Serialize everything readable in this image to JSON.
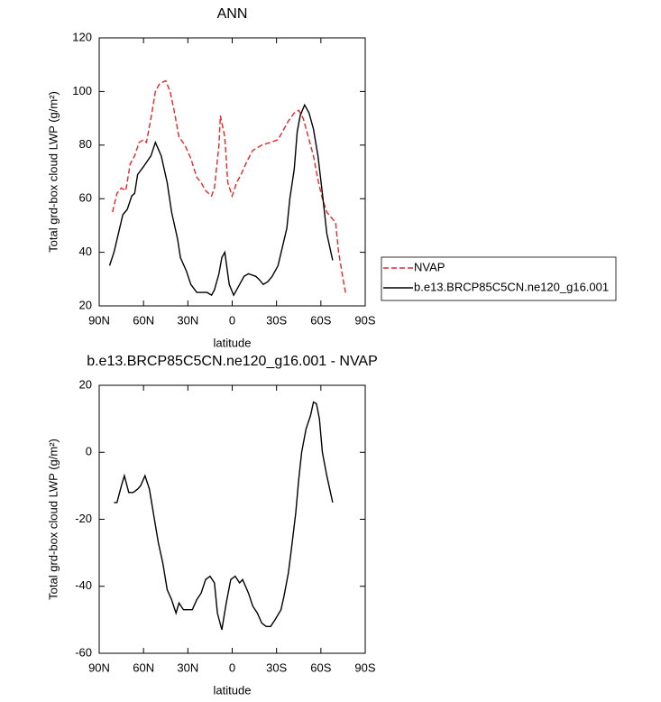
{
  "chart_data": [
    {
      "type": "line",
      "title": "ANN",
      "xlabel": "latitude",
      "ylabel": "Total grd-box cloud LWP (g/m²)",
      "xlim": [
        90,
        -90
      ],
      "xticks": [
        {
          "value": 90,
          "label": "90N"
        },
        {
          "value": 60,
          "label": "60N"
        },
        {
          "value": 30,
          "label": "30N"
        },
        0,
        {
          "value": -30,
          "label": "30S"
        },
        {
          "value": -60,
          "label": "60S"
        },
        {
          "value": -90,
          "label": "90S"
        }
      ],
      "ylim": [
        20,
        120
      ],
      "yticks": [
        20,
        40,
        60,
        80,
        100,
        120
      ],
      "legend": "right",
      "series": [
        {
          "name": "NVAP",
          "color": "#e8262a",
          "dash": "dashed",
          "x": [
            81,
            78,
            75,
            72,
            69,
            66,
            63,
            60,
            58,
            55,
            52,
            49,
            45,
            42,
            39,
            36,
            32,
            28,
            24,
            21,
            18,
            14,
            12,
            9,
            8,
            5,
            3,
            0,
            -3,
            -6,
            -10,
            -14,
            -20,
            -26,
            -31,
            -35,
            -38,
            -42,
            -45,
            -48,
            -51,
            -55,
            -58,
            -61,
            -64,
            -67,
            -70,
            -72,
            -75,
            -77
          ],
          "values": [
            55,
            62,
            64,
            63,
            73,
            76,
            81,
            82,
            81,
            90,
            100,
            103,
            104,
            100,
            92,
            83,
            80,
            75,
            68,
            66,
            63,
            61,
            64,
            80,
            91,
            83,
            66,
            61,
            66,
            69,
            74,
            78,
            80,
            81,
            82,
            86,
            89,
            92,
            93,
            90,
            84,
            76,
            67,
            60,
            55,
            53,
            51,
            40,
            30,
            24
          ]
        },
        {
          "name": "b.e13.BRCP85C5CN.ne120_g16.001",
          "color": "#000000",
          "dash": "solid",
          "x": [
            83,
            80,
            77,
            74,
            71,
            68,
            66,
            64,
            60,
            55,
            52,
            48,
            44,
            41,
            37,
            35,
            31,
            28,
            24,
            20,
            17,
            14,
            12,
            9,
            7,
            5,
            2,
            -1,
            -4,
            -8,
            -11,
            -16,
            -18,
            -21,
            -24,
            -27,
            -31,
            -34,
            -37,
            -39,
            -42,
            -44,
            -46,
            -49,
            -52,
            -55,
            -58,
            -61,
            -64,
            -68
          ],
          "values": [
            35,
            40,
            47,
            54,
            56,
            61,
            62,
            69,
            72,
            76,
            81,
            76,
            66,
            55,
            45,
            38,
            33,
            28,
            25,
            25,
            25,
            24,
            26,
            32,
            38,
            40,
            28,
            24,
            27,
            31,
            32,
            31,
            30,
            28,
            29,
            31,
            35,
            42,
            49,
            60,
            71,
            85,
            91,
            95,
            92,
            86,
            76,
            62,
            47,
            37
          ]
        }
      ]
    },
    {
      "type": "line",
      "title": "b.e13.BRCP85C5CN.ne120_g16.001 - NVAP",
      "xlabel": "latitude",
      "ylabel": "Total grd-box cloud LWP (g/m²)",
      "xlim": [
        90,
        -90
      ],
      "xticks": [
        {
          "value": 90,
          "label": "90N"
        },
        {
          "value": 60,
          "label": "60N"
        },
        {
          "value": 30,
          "label": "30N"
        },
        0,
        {
          "value": -30,
          "label": "30S"
        },
        {
          "value": -60,
          "label": "60S"
        },
        {
          "value": -90,
          "label": "90S"
        }
      ],
      "ylim": [
        -60,
        20
      ],
      "yticks": [
        -60,
        -40,
        -20,
        0,
        20
      ],
      "series": [
        {
          "color": "#000000",
          "dash": "solid",
          "x": [
            80,
            78,
            75,
            73,
            70,
            67,
            64,
            62,
            59,
            56,
            53,
            50,
            47,
            44,
            41,
            38,
            36,
            33,
            30,
            27,
            24,
            21,
            18,
            15,
            12,
            10,
            7,
            4,
            1,
            -2,
            -5,
            -7,
            -11,
            -14,
            -17,
            -20,
            -23,
            -26,
            -29,
            -33,
            -35,
            -38,
            -40,
            -43,
            -45,
            -47,
            -50,
            -53,
            -55,
            -57,
            -59,
            -61,
            -64,
            -68
          ],
          "values": [
            -15,
            -15,
            -10,
            -7,
            -12,
            -12,
            -11,
            -10,
            -7,
            -11,
            -19,
            -27,
            -33,
            -41,
            -44,
            -48,
            -45,
            -47,
            -47,
            -47,
            -44,
            -42,
            -38,
            -37,
            -39,
            -48,
            -53,
            -45,
            -38,
            -37,
            -39,
            -38,
            -42,
            -46,
            -48,
            -51,
            -52,
            -52,
            -50,
            -47,
            -43,
            -36,
            -29,
            -18,
            -8,
            0,
            7,
            11,
            15,
            14.5,
            10,
            0,
            -7,
            -15
          ]
        }
      ]
    }
  ]
}
